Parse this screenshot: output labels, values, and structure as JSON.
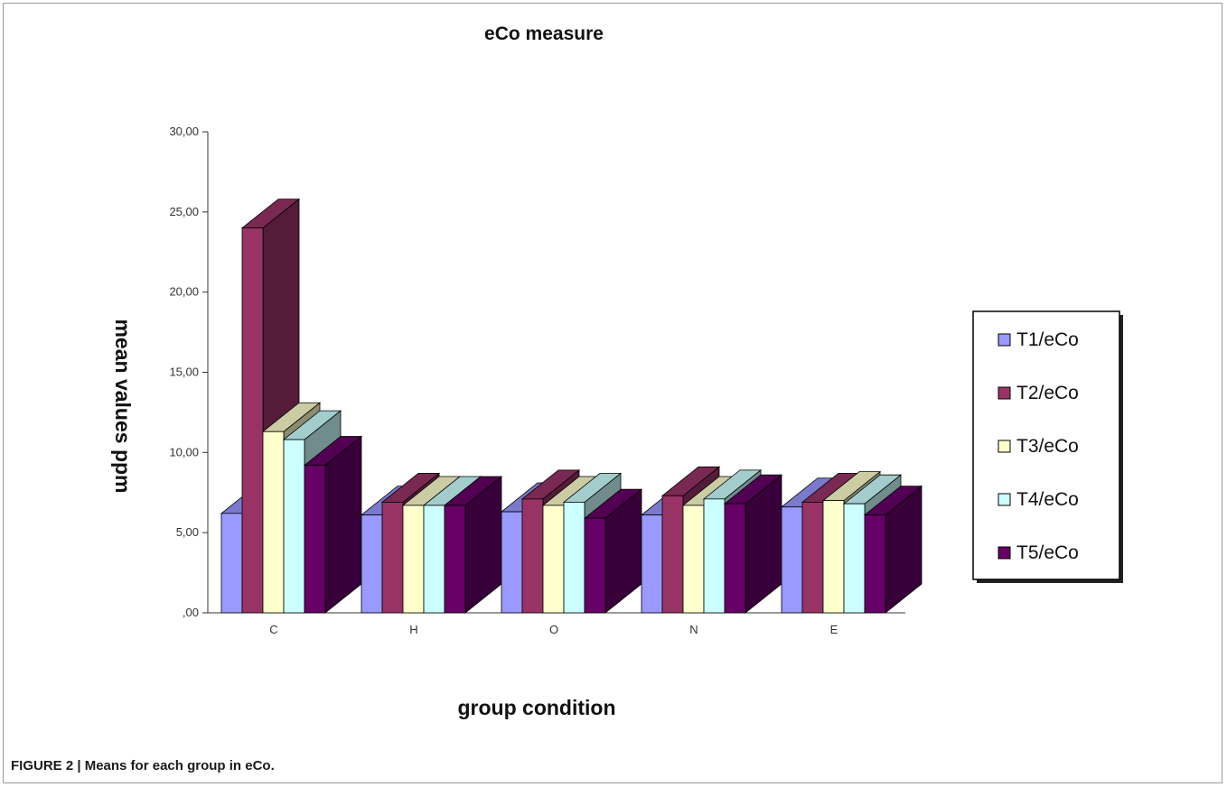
{
  "caption": "FIGURE 2 | Means for each group in eCo.",
  "chart_data": {
    "type": "bar",
    "title": "eCo measure",
    "xlabel": "group condition",
    "ylabel": "mean values ppm",
    "categories": [
      "C",
      "H",
      "O",
      "N",
      "E"
    ],
    "ylim": [
      0,
      30
    ],
    "yticks": [
      ",00",
      "5,00",
      "10,00",
      "15,00",
      "20,00",
      "25,00",
      "30,00"
    ],
    "grid": false,
    "legend_position": "right",
    "series": [
      {
        "name": "T1/eCo",
        "color": "#9999ff",
        "values": [
          6.2,
          6.1,
          6.3,
          6.1,
          6.6
        ]
      },
      {
        "name": "T2/eCo",
        "color": "#993366",
        "values": [
          24.0,
          6.9,
          7.1,
          7.3,
          6.9
        ]
      },
      {
        "name": "T3/eCo",
        "color": "#ffffcc",
        "values": [
          11.3,
          6.7,
          6.7,
          6.7,
          7.0
        ]
      },
      {
        "name": "T4/eCo",
        "color": "#ccffff",
        "values": [
          10.8,
          6.7,
          6.9,
          7.1,
          6.8
        ]
      },
      {
        "name": "T5/eCo",
        "color": "#660066",
        "values": [
          9.2,
          6.7,
          5.9,
          6.8,
          6.1
        ]
      }
    ]
  }
}
